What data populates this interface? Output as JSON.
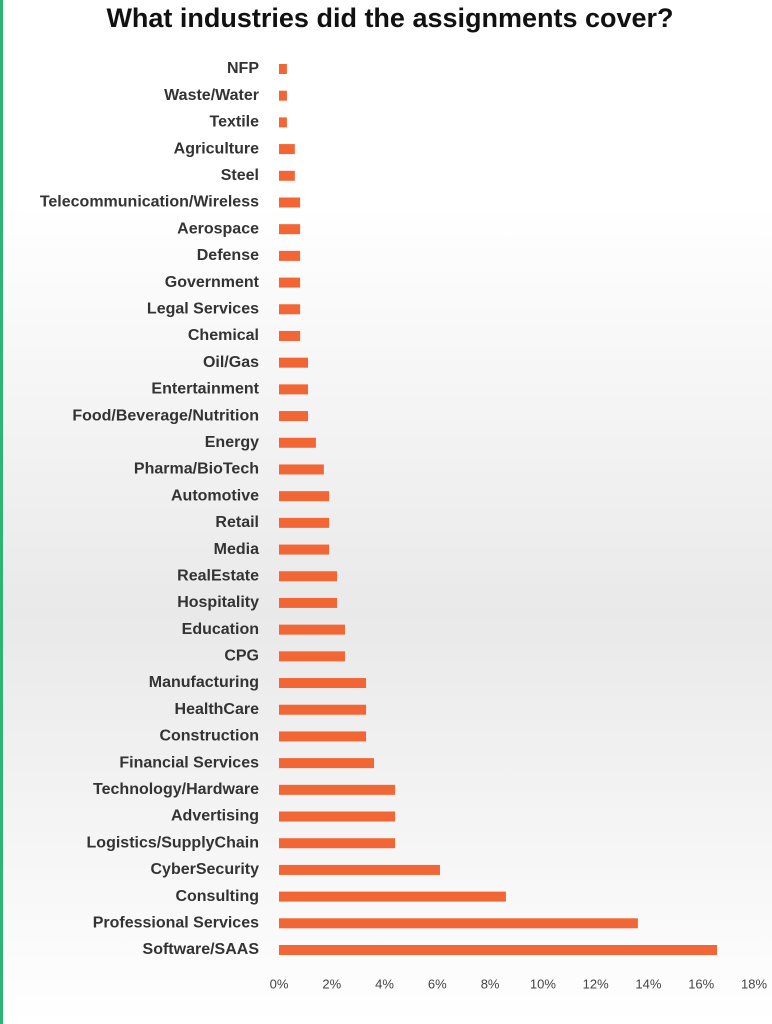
{
  "chart_data": {
    "type": "bar",
    "orientation": "horizontal",
    "title": "What industries did the assignments cover?",
    "categories": [
      "NFP",
      "Waste/Water",
      "Textile",
      "Agriculture",
      "Steel",
      "Telecommunication/Wireless",
      "Aerospace",
      "Defense",
      "Government",
      "Legal Services",
      "Chemical",
      "Oil/Gas",
      "Entertainment",
      "Food/Beverage/Nutrition",
      "Energy",
      "Pharma/BioTech",
      "Automotive",
      "Retail",
      "Media",
      "RealEstate",
      "Hospitality",
      "Education",
      "CPG",
      "Manufacturing",
      "HealthCare",
      "Construction",
      "Financial Services",
      "Technology/Hardware",
      "Advertising",
      "Logistics/SupplyChain",
      "CyberSecurity",
      "Consulting",
      "Professional Services",
      "Software/SAAS"
    ],
    "values": [
      0.3,
      0.3,
      0.3,
      0.6,
      0.6,
      0.8,
      0.8,
      0.8,
      0.8,
      0.8,
      0.8,
      1.1,
      1.1,
      1.1,
      1.4,
      1.7,
      1.9,
      1.9,
      1.9,
      2.2,
      2.2,
      2.5,
      2.5,
      3.3,
      3.3,
      3.3,
      3.6,
      4.4,
      4.4,
      4.4,
      6.1,
      8.6,
      13.6,
      16.6
    ],
    "color": "#f26535",
    "xlim": [
      0,
      18
    ],
    "xticks": [
      {
        "value": 0,
        "label": "0%"
      },
      {
        "value": 2,
        "label": "2%"
      },
      {
        "value": 4,
        "label": "4%"
      },
      {
        "value": 6,
        "label": "6%"
      },
      {
        "value": 8,
        "label": "8%"
      },
      {
        "value": 10,
        "label": "10%"
      },
      {
        "value": 12,
        "label": "12%"
      },
      {
        "value": 14,
        "label": "14%"
      },
      {
        "value": 16,
        "label": "16%"
      },
      {
        "value": 18,
        "label": "18%"
      }
    ]
  }
}
